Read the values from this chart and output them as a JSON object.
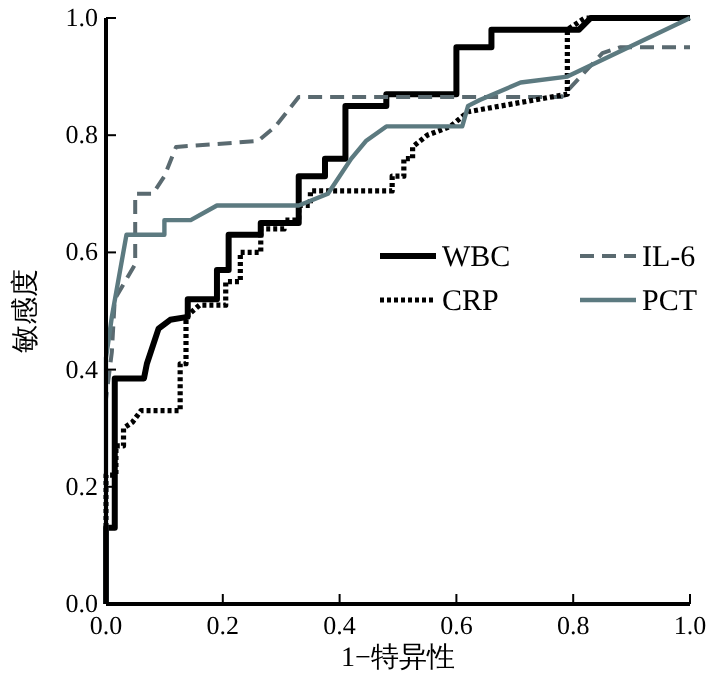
{
  "chart_data": {
    "type": "line",
    "xlabel": "1−特异性",
    "ylabel": "敏感度",
    "xlim": [
      0,
      1
    ],
    "ylim": [
      0,
      1
    ],
    "xticks": [
      {
        "value": 0,
        "label": "0.0"
      },
      {
        "value": 0.2,
        "label": "0.2"
      },
      {
        "value": 0.4,
        "label": "0.4"
      },
      {
        "value": 0.6,
        "label": "0.6"
      },
      {
        "value": 0.8,
        "label": "0.8"
      },
      {
        "value": 1,
        "label": "1.0"
      }
    ],
    "yticks": [
      {
        "value": 0,
        "label": "0.0"
      },
      {
        "value": 0.2,
        "label": "0.2"
      },
      {
        "value": 0.4,
        "label": "0.4"
      },
      {
        "value": 0.6,
        "label": "0.6"
      },
      {
        "value": 0.8,
        "label": "0.8"
      },
      {
        "value": 1,
        "label": "1.0"
      }
    ],
    "grid": false,
    "legend": "right",
    "marker": "none",
    "series": [
      {
        "name": "WBC",
        "color": "#000000",
        "line_style": "solid",
        "x": [
          0,
          0,
          0.015,
          0.015,
          0.065,
          0.07,
          0.09,
          0.11,
          0.14,
          0.14,
          0.19,
          0.19,
          0.21,
          0.21,
          0.265,
          0.265,
          0.33,
          0.33,
          0.375,
          0.375,
          0.41,
          0.41,
          0.48,
          0.48,
          0.6,
          0.6,
          0.66,
          0.66,
          0.81,
          0.83,
          1
        ],
        "values": [
          0,
          0.13,
          0.13,
          0.385,
          0.385,
          0.41,
          0.47,
          0.485,
          0.49,
          0.52,
          0.52,
          0.57,
          0.57,
          0.63,
          0.63,
          0.65,
          0.65,
          0.73,
          0.73,
          0.76,
          0.76,
          0.85,
          0.85,
          0.87,
          0.87,
          0.95,
          0.95,
          0.98,
          0.98,
          1,
          1
        ]
      },
      {
        "name": "IL-6",
        "color": "#5a6a70",
        "line_style": "dashed",
        "x": [
          0,
          0,
          0.01,
          0.015,
          0.05,
          0.05,
          0.08,
          0.1,
          0.12,
          0.26,
          0.29,
          0.31,
          0.33,
          0.78,
          0.85,
          0.88,
          1
        ],
        "values": [
          0,
          0.35,
          0.43,
          0.52,
          0.58,
          0.7,
          0.7,
          0.73,
          0.78,
          0.79,
          0.815,
          0.84,
          0.865,
          0.865,
          0.94,
          0.95,
          0.95
        ]
      },
      {
        "name": "CRP",
        "color": "#000000",
        "line_style": "dotted",
        "x": [
          0,
          0,
          0.017,
          0.017,
          0.03,
          0.03,
          0.045,
          0.06,
          0.127,
          0.127,
          0.137,
          0.137,
          0.16,
          0.205,
          0.205,
          0.23,
          0.23,
          0.265,
          0.265,
          0.305,
          0.305,
          0.33,
          0.33,
          0.35,
          0.35,
          0.49,
          0.49,
          0.51,
          0.51,
          0.525,
          0.525,
          0.55,
          0.59,
          0.62,
          0.79,
          0.79,
          0.82,
          1
        ],
        "values": [
          0,
          0.22,
          0.22,
          0.27,
          0.27,
          0.3,
          0.31,
          0.33,
          0.33,
          0.41,
          0.41,
          0.49,
          0.51,
          0.51,
          0.55,
          0.55,
          0.6,
          0.6,
          0.64,
          0.64,
          0.655,
          0.655,
          0.68,
          0.68,
          0.705,
          0.705,
          0.73,
          0.73,
          0.76,
          0.76,
          0.78,
          0.8,
          0.815,
          0.84,
          0.87,
          0.98,
          1,
          1
        ]
      },
      {
        "name": "PCT",
        "color": "#5c7a80",
        "line_style": "solid",
        "x": [
          0,
          0,
          0.01,
          0.035,
          0.1,
          0.1,
          0.145,
          0.19,
          0.33,
          0.38,
          0.42,
          0.445,
          0.48,
          0.61,
          0.62,
          0.64,
          0.71,
          0.79,
          1
        ],
        "values": [
          0,
          0.42,
          0.49,
          0.63,
          0.63,
          0.655,
          0.655,
          0.68,
          0.68,
          0.7,
          0.76,
          0.79,
          0.815,
          0.815,
          0.85,
          0.86,
          0.89,
          0.9,
          1
        ]
      }
    ]
  }
}
